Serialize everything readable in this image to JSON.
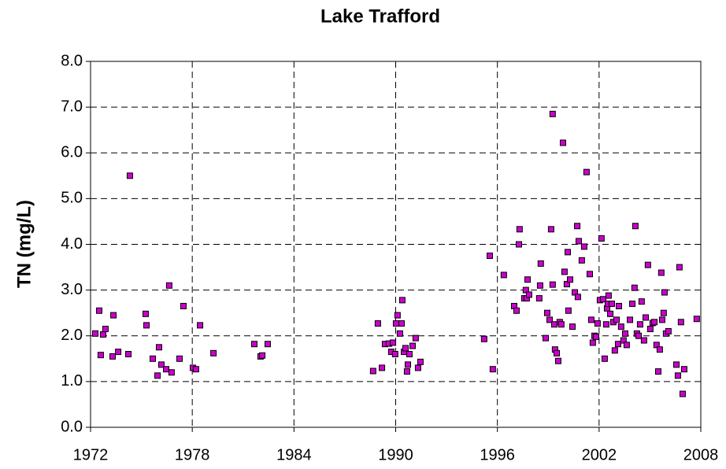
{
  "chart_data": {
    "type": "scatter",
    "title": "Lake Trafford",
    "y_label": "TN (mg/L)",
    "x": [
      1972.28,
      1972.51,
      1972.6,
      1972.74,
      1972.88,
      1973.3,
      1973.35,
      1973.63,
      1974.23,
      1974.32,
      1975.25,
      1975.3,
      1975.67,
      1975.95,
      1976.04,
      1976.18,
      1976.46,
      1976.64,
      1976.78,
      1977.25,
      1977.48,
      1978.04,
      1978.22,
      1978.46,
      1979.25,
      1981.66,
      1982.03,
      1982.13,
      1982.45,
      1988.67,
      1988.95,
      1989.19,
      1989.37,
      1989.6,
      1989.74,
      1989.84,
      1989.97,
      1990.02,
      1990.11,
      1990.25,
      1990.35,
      1990.39,
      1990.49,
      1990.58,
      1990.67,
      1990.72,
      1990.81,
      1991.0,
      1991.18,
      1991.32,
      1991.46,
      1995.22,
      1995.55,
      1995.73,
      1996.38,
      1996.99,
      1997.13,
      1997.27,
      1997.31,
      1997.59,
      1997.68,
      1997.73,
      1997.78,
      1997.87,
      1998.47,
      1998.56,
      1998.52,
      1998.85,
      1998.94,
      1999.08,
      1999.17,
      1999.26,
      1999.26,
      1999.36,
      1999.4,
      1999.5,
      1999.59,
      1999.68,
      1999.77,
      1999.87,
      1999.96,
      2000.1,
      2000.15,
      2000.19,
      2000.29,
      2000.43,
      2000.57,
      2000.71,
      2000.75,
      2000.8,
      2000.98,
      2001.12,
      2001.26,
      2001.45,
      2001.54,
      2001.63,
      2001.73,
      2001.82,
      2001.91,
      2002.05,
      2002.14,
      2002.24,
      2002.33,
      2002.42,
      2002.47,
      2002.52,
      2002.56,
      2002.66,
      2002.75,
      2002.84,
      2002.93,
      2003.03,
      2003.12,
      2003.17,
      2003.3,
      2003.44,
      2003.54,
      2003.63,
      2003.82,
      2003.96,
      2004.09,
      2004.14,
      2004.23,
      2004.33,
      2004.42,
      2004.51,
      2004.65,
      2004.75,
      2004.88,
      2005.02,
      2005.16,
      2005.26,
      2005.39,
      2005.49,
      2005.58,
      2005.67,
      2005.72,
      2005.81,
      2005.86,
      2005.95,
      2006.09,
      2006.56,
      2006.65,
      2006.74,
      2006.83,
      2006.93,
      2007.02,
      2007.76
    ],
    "series": [
      {
        "color": "#cc00cc",
        "values": [
          2.05,
          2.55,
          1.58,
          2.03,
          2.15,
          1.55,
          2.45,
          1.65,
          1.6,
          5.5,
          2.48,
          2.23,
          1.5,
          1.13,
          1.75,
          1.37,
          1.27,
          3.1,
          1.2,
          1.5,
          2.65,
          1.3,
          1.27,
          2.23,
          1.62,
          1.82,
          1.55,
          1.57,
          1.82,
          1.23,
          2.27,
          1.3,
          1.82,
          1.83,
          1.65,
          1.85,
          1.6,
          2.27,
          2.45,
          2.05,
          2.27,
          2.78,
          1.65,
          1.73,
          1.22,
          1.37,
          1.6,
          1.78,
          1.95,
          1.3,
          1.43,
          1.93,
          3.75,
          1.27,
          3.33,
          2.65,
          2.55,
          4.0,
          4.33,
          2.82,
          3.0,
          2.82,
          3.23,
          2.9,
          2.82,
          3.58,
          3.1,
          1.95,
          2.5,
          2.35,
          4.33,
          6.85,
          3.12,
          2.25,
          1.7,
          1.62,
          1.45,
          2.3,
          2.25,
          6.22,
          3.4,
          3.13,
          3.83,
          2.55,
          3.23,
          2.2,
          2.95,
          4.4,
          2.85,
          4.07,
          3.65,
          3.95,
          5.58,
          3.35,
          2.35,
          1.85,
          2.0,
          1.98,
          2.27,
          2.78,
          4.13,
          2.8,
          1.5,
          2.25,
          2.6,
          2.7,
          2.88,
          2.48,
          2.7,
          2.3,
          1.68,
          2.35,
          1.82,
          2.65,
          2.2,
          1.9,
          2.05,
          1.8,
          2.35,
          2.7,
          3.05,
          4.4,
          2.05,
          2.0,
          2.25,
          2.75,
          1.9,
          2.4,
          3.55,
          2.15,
          2.28,
          2.3,
          1.8,
          1.22,
          1.7,
          3.38,
          2.35,
          2.5,
          2.95,
          2.05,
          2.1,
          1.37,
          1.13,
          3.5,
          2.3,
          0.73,
          1.27,
          2.37
        ]
      }
    ],
    "xlim": [
      1972,
      2008
    ],
    "xticks": [
      1972,
      1978,
      1984,
      1990,
      1996,
      2002,
      2008
    ],
    "ylim": [
      0,
      8
    ],
    "yticks": [
      {
        "value": 0,
        "label": "0.0"
      },
      {
        "value": 1,
        "label": "1.0"
      },
      {
        "value": 2,
        "label": "2.0"
      },
      {
        "value": 3,
        "label": "3.0"
      },
      {
        "value": 4,
        "label": "4.0"
      },
      {
        "value": 5,
        "label": "5.0"
      },
      {
        "value": 6,
        "label": "6.0"
      },
      {
        "value": 7,
        "label": "7.0"
      },
      {
        "value": 8,
        "label": "8.0"
      }
    ],
    "grid": true
  }
}
